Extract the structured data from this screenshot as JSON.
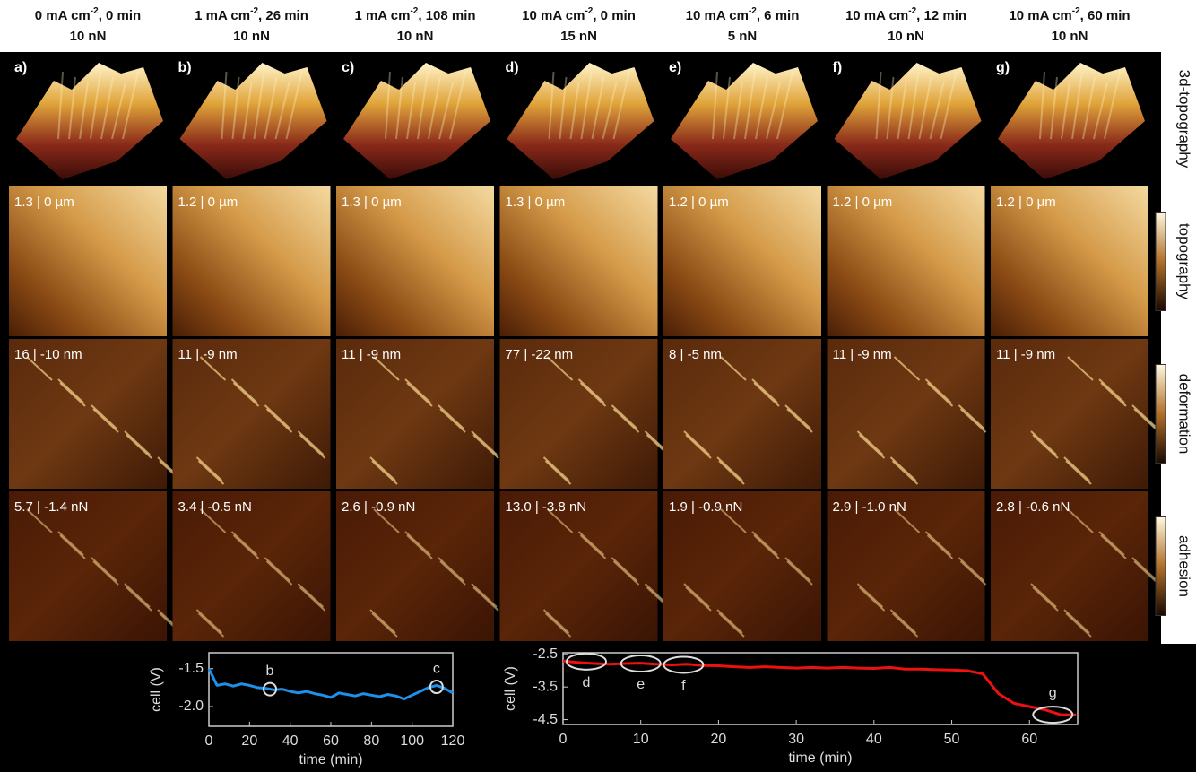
{
  "columns": [
    {
      "panel": "a)",
      "current": "0 mA cm",
      "exponent": "-2",
      "time": ", 0 min",
      "force": "10 nN",
      "topography": "1.3 | 0 µm",
      "deformation": "16 | -10 nm",
      "adhesion": "5.7 | -1.4 nN"
    },
    {
      "panel": "b)",
      "current": "1 mA cm",
      "exponent": "-2",
      "time": ", 26 min",
      "force": "10 nN",
      "topography": "1.2 | 0 µm",
      "deformation": "11 | -9 nm",
      "adhesion": "3.4 | -0.5 nN"
    },
    {
      "panel": "c)",
      "current": "1 mA cm",
      "exponent": "-2",
      "time": ", 108 min",
      "force": "10 nN",
      "topography": "1.3 | 0 µm",
      "deformation": "11 | -9 nm",
      "adhesion": "2.6 | -0.9 nN"
    },
    {
      "panel": "d)",
      "current": "10 mA cm",
      "exponent": "-2",
      "time": ", 0 min",
      "force": "15 nN",
      "topography": "1.3 | 0 µm",
      "deformation": "77 | -22 nm",
      "adhesion": "13.0 | -3.8 nN"
    },
    {
      "panel": "e)",
      "current": "10 mA cm",
      "exponent": "-2",
      "time": ", 6 min",
      "force": "5 nN",
      "topography": "1.2 | 0 µm",
      "deformation": "8 | -5 nm",
      "adhesion": "1.9 | -0.9 nN"
    },
    {
      "panel": "f)",
      "current": "10 mA cm",
      "exponent": "-2",
      "time": ", 12 min",
      "force": "10 nN",
      "topography": "1.2 | 0 µm",
      "deformation": "11 | -9 nm",
      "adhesion": "2.9 | -1.0 nN"
    },
    {
      "panel": "g)",
      "current": "10 mA cm",
      "exponent": "-2",
      "time": ", 60 min",
      "force": "10 nN",
      "topography": "1.2 | 0 µm",
      "deformation": "11 | -9 nm",
      "adhesion": "2.8 | -0.6 nN"
    }
  ],
  "row_labels": [
    "3d-topography",
    "topography",
    "deformation",
    "adhesion"
  ],
  "chart_data": [
    {
      "type": "line",
      "ylabel": "cell (V)",
      "xlabel": "time (min)",
      "color": "#1e90ea",
      "x": [
        0,
        4,
        8,
        12,
        16,
        20,
        24,
        28,
        32,
        36,
        40,
        44,
        48,
        52,
        56,
        60,
        64,
        68,
        72,
        76,
        80,
        84,
        88,
        92,
        96,
        100,
        104,
        108,
        112,
        116,
        120
      ],
      "values": [
        -1.5,
        -1.72,
        -1.7,
        -1.73,
        -1.7,
        -1.72,
        -1.75,
        -1.76,
        -1.78,
        -1.77,
        -1.8,
        -1.82,
        -1.8,
        -1.83,
        -1.85,
        -1.88,
        -1.82,
        -1.84,
        -1.86,
        -1.83,
        -1.85,
        -1.87,
        -1.84,
        -1.86,
        -1.9,
        -1.85,
        -1.8,
        -1.75,
        -1.72,
        -1.76,
        -1.82
      ],
      "xlim": [
        0,
        120
      ],
      "xticks": [
        0,
        20,
        40,
        60,
        80,
        100,
        120
      ],
      "ylim": [
        -2.26,
        -1.29
      ],
      "yticks": [
        -1.5,
        {
          "value": -2,
          "label": "-2.0"
        }
      ],
      "annotations": [
        {
          "label": "b",
          "x": 30,
          "y": -1.77
        },
        {
          "label": "c",
          "x": 112,
          "y": -1.74
        }
      ]
    },
    {
      "type": "line",
      "ylabel": "cell (V)",
      "xlabel": "time (min)",
      "color": "#ee1111",
      "x": [
        0,
        2,
        4,
        6,
        8,
        10,
        12,
        14,
        16,
        18,
        20,
        22,
        24,
        26,
        28,
        30,
        32,
        34,
        36,
        38,
        40,
        42,
        44,
        46,
        48,
        50,
        52,
        54,
        56,
        58,
        60,
        62,
        64,
        66
      ],
      "values": [
        -2.7,
        -2.75,
        -2.78,
        -2.8,
        -2.78,
        -2.77,
        -2.8,
        -2.82,
        -2.8,
        -2.84,
        -2.85,
        -2.88,
        -2.9,
        -2.88,
        -2.9,
        -2.92,
        -2.9,
        -2.92,
        -2.9,
        -2.92,
        -2.93,
        -2.9,
        -2.95,
        -2.95,
        -2.97,
        -2.98,
        -3.0,
        -3.1,
        -3.7,
        -4.0,
        -4.1,
        -4.2,
        -4.35,
        -4.35
      ],
      "xlim": [
        0,
        66.2
      ],
      "xticks": [
        0,
        10,
        20,
        30,
        40,
        50,
        60
      ],
      "ylim": [
        -4.65,
        -2.45
      ],
      "yticks": [
        -2.5,
        -3.5,
        -4.5
      ],
      "annotations": [
        {
          "label": "d",
          "x": 3,
          "y": -2.72
        },
        {
          "label": "e",
          "x": 10,
          "y": -2.78
        },
        {
          "label": "f",
          "x": 15.5,
          "y": -2.82
        },
        {
          "label": "g",
          "x": 63,
          "y": -4.35
        }
      ]
    }
  ]
}
